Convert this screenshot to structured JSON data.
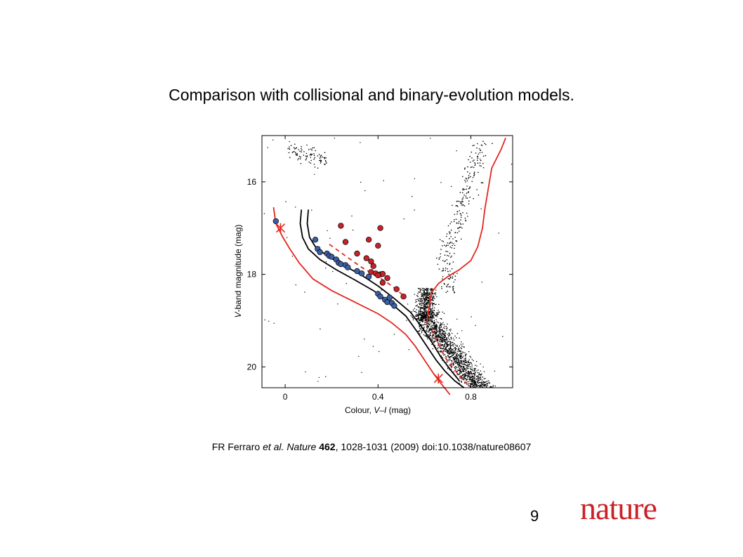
{
  "slide": {
    "title": "Comparison with collisional and binary-evolution models.",
    "page_number": "9",
    "logo_text": "nature",
    "brand_color": "#cc2027"
  },
  "citation": {
    "authors": "FR Ferraro",
    "etal": "et al.",
    "journal": "Nature",
    "volume": "462",
    "rest": ", 1028-1031 (2009) doi:10.1038/nature08607"
  },
  "chart_data": {
    "type": "scatter",
    "xlabel_prefix": "Colour, ",
    "xlabel_italic": "V–I",
    "xlabel_suffix": " (mag)",
    "ylabel_italic": "V",
    "ylabel_rest": "-band magnitude (mag)",
    "xlim": [
      -0.1,
      0.98
    ],
    "ylim": [
      20.45,
      15.0
    ],
    "xticks": [
      0,
      0.4,
      0.8
    ],
    "xtick_labels": [
      "0",
      "0.4",
      "0.8"
    ],
    "yticks": [
      16,
      18,
      20
    ],
    "ytick_labels": [
      "16",
      "18",
      "20"
    ],
    "grid": false,
    "colors": {
      "blue_points": "#3a5ea8",
      "red_points": "#cc2027",
      "model_red": "#e2261f",
      "model_black": "#000000"
    },
    "series": [
      {
        "marker": "circle-filled",
        "color": "#3a5ea8",
        "points": [
          [
            -0.04,
            16.85
          ],
          [
            0.13,
            17.25
          ],
          [
            0.14,
            17.45
          ],
          [
            0.15,
            17.52
          ],
          [
            0.18,
            17.55
          ],
          [
            0.19,
            17.6
          ],
          [
            0.2,
            17.62
          ],
          [
            0.22,
            17.68
          ],
          [
            0.23,
            17.75
          ],
          [
            0.24,
            17.78
          ],
          [
            0.26,
            17.8
          ],
          [
            0.27,
            17.85
          ],
          [
            0.31,
            17.93
          ],
          [
            0.33,
            17.98
          ],
          [
            0.36,
            18.05
          ],
          [
            0.4,
            18.42
          ],
          [
            0.41,
            18.48
          ],
          [
            0.43,
            18.55
          ],
          [
            0.44,
            18.6
          ],
          [
            0.45,
            18.5
          ],
          [
            0.46,
            18.62
          ],
          [
            0.47,
            18.68
          ]
        ]
      },
      {
        "marker": "circle-filled",
        "color": "#cc2027",
        "points": [
          [
            0.24,
            16.95
          ],
          [
            0.41,
            17.0
          ],
          [
            0.26,
            17.3
          ],
          [
            0.36,
            17.25
          ],
          [
            0.31,
            17.55
          ],
          [
            0.4,
            17.38
          ],
          [
            0.35,
            17.65
          ],
          [
            0.37,
            17.72
          ],
          [
            0.38,
            17.82
          ],
          [
            0.37,
            17.95
          ],
          [
            0.39,
            17.98
          ],
          [
            0.41,
            18.0
          ],
          [
            0.42,
            17.99
          ],
          [
            0.4,
            18.02
          ],
          [
            0.44,
            18.08
          ],
          [
            0.42,
            18.18
          ],
          [
            0.48,
            18.32
          ],
          [
            0.51,
            18.48
          ]
        ]
      },
      {
        "name": "Collisional model track (solid black, older)",
        "style": "solid",
        "color": "#000000",
        "x": [
          0.07,
          0.065,
          0.075,
          0.1,
          0.15,
          0.22,
          0.3,
          0.38,
          0.45,
          0.52,
          0.57,
          0.61,
          0.65,
          0.69,
          0.73,
          0.77
        ],
        "y": [
          16.6,
          16.9,
          17.2,
          17.45,
          17.68,
          17.9,
          18.12,
          18.35,
          18.6,
          18.9,
          19.25,
          19.55,
          19.85,
          20.1,
          20.3,
          20.45
        ]
      },
      {
        "name": "Collisional model track (solid black, younger)",
        "style": "solid",
        "color": "#000000",
        "x": [
          0.1,
          0.095,
          0.105,
          0.13,
          0.18,
          0.25,
          0.33,
          0.4,
          0.47,
          0.54,
          0.59,
          0.63,
          0.67,
          0.71,
          0.75
        ],
        "y": [
          16.6,
          16.9,
          17.2,
          17.4,
          17.6,
          17.8,
          18.02,
          18.25,
          18.52,
          18.82,
          19.15,
          19.45,
          19.78,
          20.05,
          20.3
        ]
      },
      {
        "name": "Binary mass-transfer model (dashed red)",
        "style": "dashed",
        "color": "#e2261f",
        "x": [
          0.19,
          0.26,
          0.33,
          0.4,
          0.46,
          0.52
        ],
        "y": [
          17.35,
          17.6,
          17.85,
          18.05,
          18.25,
          18.5
        ]
      },
      {
        "name": "Isochrone (solid red)",
        "style": "solid",
        "color": "#e2261f",
        "x": [
          -0.05,
          -0.04,
          -0.01,
          0.02,
          0.06,
          0.12,
          0.2,
          0.3,
          0.4,
          0.46,
          0.52,
          0.56,
          0.6,
          0.64,
          0.67,
          0.71
        ],
        "y": [
          16.55,
          16.9,
          17.2,
          17.45,
          17.75,
          18.1,
          18.35,
          18.6,
          18.85,
          19.05,
          19.3,
          19.55,
          19.85,
          20.15,
          20.35,
          20.6
        ]
      },
      {
        "name": "Isochrone giant branch (solid red)",
        "style": "solid",
        "color": "#e2261f",
        "x": [
          0.61,
          0.62,
          0.63,
          0.66,
          0.7,
          0.75,
          0.8,
          0.83,
          0.85,
          0.86,
          0.87,
          0.88,
          0.89,
          0.91,
          0.93,
          0.95
        ],
        "y": [
          19.05,
          18.7,
          18.4,
          18.2,
          18.05,
          17.9,
          17.7,
          17.4,
          17.0,
          16.6,
          16.3,
          16.0,
          15.7,
          15.5,
          15.3,
          15.05
        ]
      },
      {
        "name": "Isochrone lower main sequence (dashed red)",
        "style": "dashed",
        "color": "#e2261f",
        "x": [
          0.63,
          0.66,
          0.69,
          0.72,
          0.76,
          0.8
        ],
        "y": [
          19.2,
          19.5,
          19.8,
          20.0,
          20.25,
          20.45
        ]
      },
      {
        "name": "Reference stars",
        "marker": "star",
        "color": "#e2261f",
        "points": [
          [
            -0.02,
            17.0
          ],
          [
            0.66,
            20.25
          ]
        ]
      }
    ]
  }
}
